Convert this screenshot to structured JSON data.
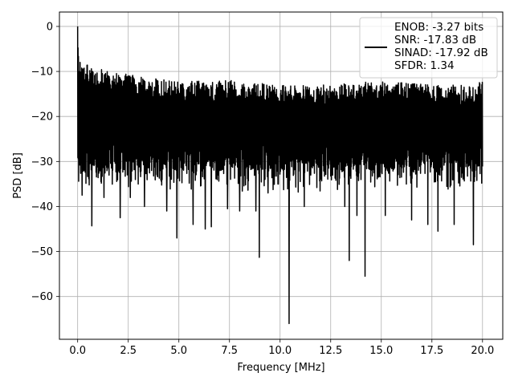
{
  "chart_data": {
    "type": "line",
    "xlabel": "Frequency [MHz]",
    "ylabel": "PSD [dB]",
    "xlim": [
      -0.9,
      21.0
    ],
    "ylim": [
      -69.5,
      3.2
    ],
    "xticks": [
      0.0,
      2.5,
      5.0,
      7.5,
      10.0,
      12.5,
      15.0,
      17.5,
      20.0
    ],
    "xtick_labels": [
      "0.0",
      "2.5",
      "5.0",
      "7.5",
      "10.0",
      "12.5",
      "15.0",
      "17.5",
      "20.0"
    ],
    "yticks": [
      0,
      -10,
      -20,
      -30,
      -40,
      -50,
      -60
    ],
    "ytick_labels": [
      "0",
      "−10",
      "−20",
      "−30",
      "−40",
      "−50",
      "−60"
    ],
    "grid": true,
    "legend_placement": "top-right",
    "line_color": "#000000",
    "legend": {
      "lines": [
        "ENOB: -3.27 bits",
        "SNR: -17.83 dB",
        "SINAD: -17.92 dB",
        "SFDR: 1.34"
      ]
    },
    "series": [
      {
        "x_start": 0.0,
        "x_end": 20.0,
        "points": 2000,
        "typical_range": [
          -31,
          -13
        ],
        "envelope": [
          {
            "x": 0.0,
            "y": 0
          },
          {
            "x": 0.03,
            "y": -4
          },
          {
            "x": 0.08,
            "y": -10
          },
          {
            "x": 0.15,
            "y": -6
          },
          {
            "x": 0.25,
            "y": -9
          },
          {
            "x": 0.45,
            "y": -8
          },
          {
            "x": 0.75,
            "y": -9
          },
          {
            "x": 1.5,
            "y": -10
          },
          {
            "x": 3.0,
            "y": -11
          },
          {
            "x": 5.0,
            "y": -12
          },
          {
            "x": 7.5,
            "y": -12
          },
          {
            "x": 10.0,
            "y": -13
          },
          {
            "x": 12.5,
            "y": -13
          },
          {
            "x": 15.0,
            "y": -12
          },
          {
            "x": 17.5,
            "y": -13
          },
          {
            "x": 19.5,
            "y": -13
          },
          {
            "x": 20.0,
            "y": -12
          }
        ],
        "dips": [
          {
            "x": 0.1,
            "y": -22.5
          },
          {
            "x": 0.22,
            "y": -37.5
          },
          {
            "x": 0.7,
            "y": -44.3
          },
          {
            "x": 1.3,
            "y": -38
          },
          {
            "x": 2.1,
            "y": -42.5
          },
          {
            "x": 2.6,
            "y": -38
          },
          {
            "x": 3.3,
            "y": -40
          },
          {
            "x": 4.4,
            "y": -41
          },
          {
            "x": 4.9,
            "y": -47
          },
          {
            "x": 5.7,
            "y": -44
          },
          {
            "x": 6.3,
            "y": -45
          },
          {
            "x": 6.6,
            "y": -44.5
          },
          {
            "x": 7.4,
            "y": -40.5
          },
          {
            "x": 8.0,
            "y": -41
          },
          {
            "x": 8.8,
            "y": -41
          },
          {
            "x": 8.97,
            "y": -51.3
          },
          {
            "x": 9.4,
            "y": -37
          },
          {
            "x": 10.45,
            "y": -66
          },
          {
            "x": 11.2,
            "y": -40
          },
          {
            "x": 13.2,
            "y": -40
          },
          {
            "x": 13.42,
            "y": -52
          },
          {
            "x": 13.8,
            "y": -42
          },
          {
            "x": 14.2,
            "y": -55.5
          },
          {
            "x": 15.2,
            "y": -42
          },
          {
            "x": 16.5,
            "y": -43
          },
          {
            "x": 17.3,
            "y": -44
          },
          {
            "x": 17.8,
            "y": -45.5
          },
          {
            "x": 18.6,
            "y": -44
          },
          {
            "x": 19.55,
            "y": -48.5
          }
        ]
      }
    ]
  }
}
